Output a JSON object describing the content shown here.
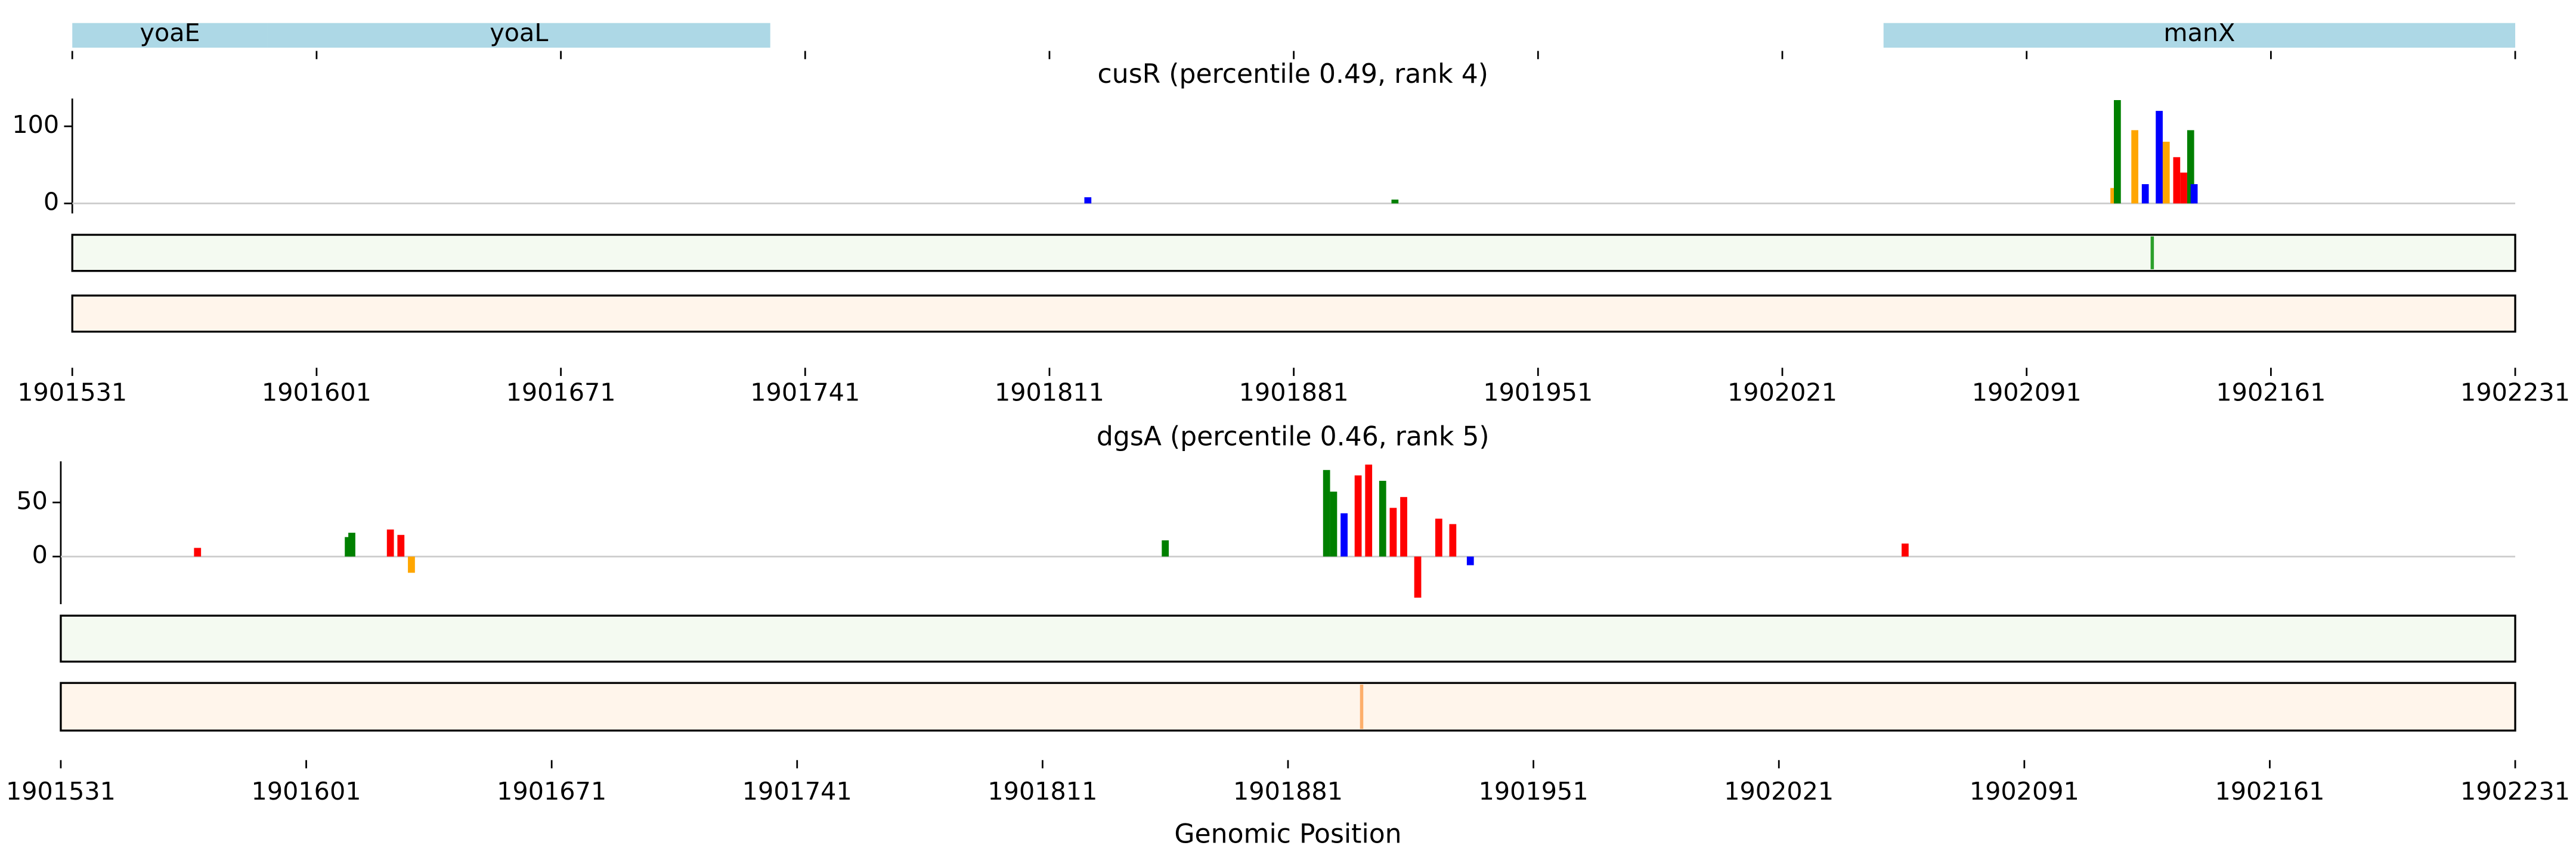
{
  "genes": {
    "color": "#add8e6",
    "xlim": [
      1901531,
      1902231
    ],
    "items": [
      {
        "name": "yoaE",
        "start": 1901531,
        "end": 1901587
      },
      {
        "name": "yoaL",
        "start": 1901587,
        "end": 1901731
      },
      {
        "name": "manX",
        "start": 1902050,
        "end": 1902231
      }
    ]
  },
  "chart_data": [
    {
      "type": "logo",
      "title": "cusR (percentile 0.49, rank 4)",
      "base_colors": {
        "A": "#008000",
        "C": "#0000ff",
        "G": "#ffa600",
        "T": "#ff0000"
      },
      "x": [
        1901822,
        1901910,
        1902116,
        1902117,
        1902122,
        1902125,
        1902129,
        1902131,
        1902134,
        1902136,
        1902138,
        1902139
      ],
      "bases": [
        "C",
        "A",
        "G",
        "A",
        "G",
        "C",
        "C",
        "G",
        "T",
        "T",
        "A",
        "C"
      ],
      "values": [
        8,
        5,
        20,
        134,
        95,
        25,
        120,
        80,
        60,
        40,
        95,
        25
      ],
      "xlim": [
        1901531,
        1902231
      ],
      "xticks": [
        1901531,
        1901601,
        1901671,
        1901741,
        1901811,
        1901881,
        1901951,
        1902021,
        1902091,
        1902161,
        1902231
      ],
      "ylim": [
        -13,
        136
      ],
      "yticks": [
        0,
        100
      ],
      "strips": [
        {
          "fill": "#f4faf1",
          "peak_color": "#2ca02c",
          "peaks": [
            1902127
          ]
        },
        {
          "fill": "#fff5eb",
          "peak_color": "#fdae6b",
          "peaks": []
        }
      ]
    },
    {
      "type": "logo",
      "title": "dgsA (percentile 0.46, rank 5)",
      "xlabel": "Genomic Position",
      "base_colors": {
        "A": "#008000",
        "C": "#0000ff",
        "G": "#ffa600",
        "T": "#ff0000"
      },
      "x": [
        1901570,
        1901613,
        1901614,
        1901625,
        1901628,
        1901631,
        1901846,
        1901892,
        1901894,
        1901897,
        1901901,
        1901904,
        1901908,
        1901911,
        1901914,
        1901918,
        1901924,
        1901928,
        1901933,
        1902057
      ],
      "bases": [
        "T",
        "A",
        "A",
        "T",
        "T",
        "G",
        "A",
        "A",
        "A",
        "C",
        "T",
        "T",
        "A",
        "T",
        "T",
        "T",
        "T",
        "T",
        "C",
        "T"
      ],
      "values": [
        8,
        18,
        22,
        25,
        20,
        -15,
        15,
        80,
        60,
        40,
        75,
        85,
        70,
        45,
        55,
        -38,
        35,
        30,
        -8,
        12
      ],
      "xlim": [
        1901531,
        1902231
      ],
      "xticks": [
        1901531,
        1901601,
        1901671,
        1901741,
        1901811,
        1901881,
        1901951,
        1902021,
        1902091,
        1902161,
        1902231
      ],
      "ylim": [
        -44,
        88
      ],
      "yticks": [
        0,
        50
      ],
      "strips": [
        {
          "fill": "#f4faf1",
          "peak_color": "#2ca02c",
          "peaks": []
        },
        {
          "fill": "#fff5eb",
          "peak_color": "#fdae6b",
          "peaks": [
            1901902
          ]
        }
      ]
    }
  ]
}
